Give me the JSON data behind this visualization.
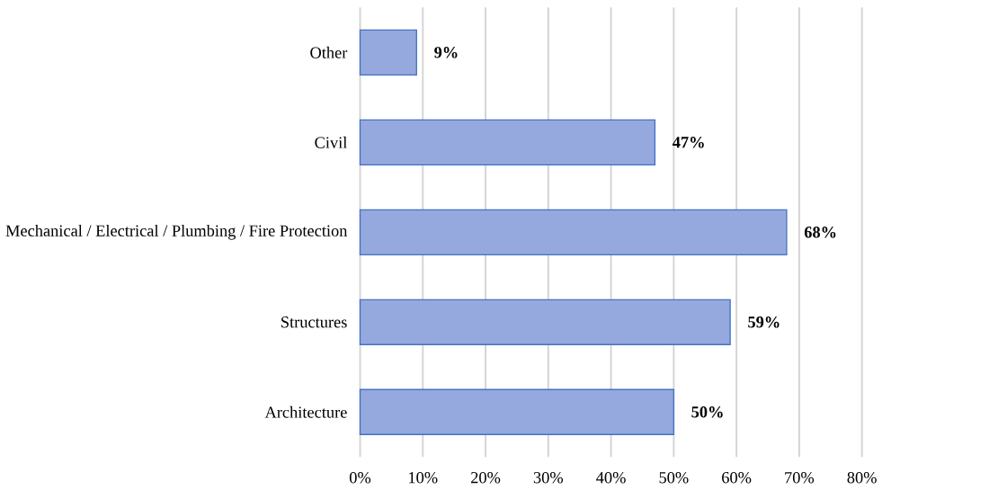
{
  "chart_data": {
    "type": "bar",
    "orientation": "horizontal",
    "categories": [
      "Other",
      "Civil",
      "Mechanical / Electrical / Plumbing / Fire Protection",
      "Structures",
      "Architecture"
    ],
    "values": [
      9,
      47,
      68,
      59,
      50
    ],
    "value_labels": [
      "9%",
      "47%",
      "68%",
      "59%",
      "50%"
    ],
    "color": "#95a9de",
    "xlim": [
      0,
      80
    ],
    "xticks": [
      {
        "value": 0,
        "label": "0%"
      },
      {
        "value": 10,
        "label": "10%"
      },
      {
        "value": 20,
        "label": "20%"
      },
      {
        "value": 30,
        "label": "30%"
      },
      {
        "value": 40,
        "label": "40%"
      },
      {
        "value": 50,
        "label": "50%"
      },
      {
        "value": 60,
        "label": "60%"
      },
      {
        "value": 70,
        "label": "70%"
      },
      {
        "value": 80,
        "label": "80%"
      }
    ],
    "grid": "x"
  }
}
